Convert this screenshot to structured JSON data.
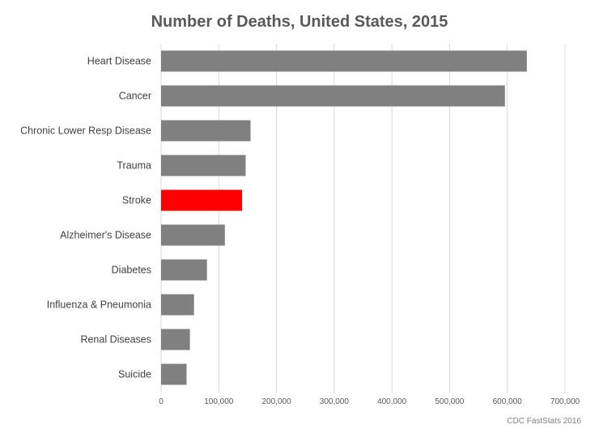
{
  "chart_data": {
    "type": "bar",
    "orientation": "horizontal",
    "title": "Number of Deaths, United States, 2015",
    "categories": [
      "Heart Disease",
      "Cancer",
      "Chronic Lower Resp Disease",
      "Trauma",
      "Stroke",
      "Alzheimer's Disease",
      "Diabetes",
      "Influenza & Pneumonia",
      "Renal Diseases",
      "Suicide"
    ],
    "values": [
      633842,
      595930,
      155041,
      146571,
      140323,
      110561,
      79535,
      57062,
      49959,
      44193
    ],
    "colors": [
      "#808080",
      "#808080",
      "#808080",
      "#808080",
      "#ff0000",
      "#808080",
      "#808080",
      "#808080",
      "#808080",
      "#808080"
    ],
    "xlim": [
      0,
      700000
    ],
    "xticks": [
      "0",
      "100,000",
      "200,000",
      "300,000",
      "400,000",
      "500,000",
      "600,000",
      "700,000"
    ],
    "grid": "vertical",
    "xlabel": "",
    "ylabel": "",
    "source": "CDC FastStats 2016"
  }
}
